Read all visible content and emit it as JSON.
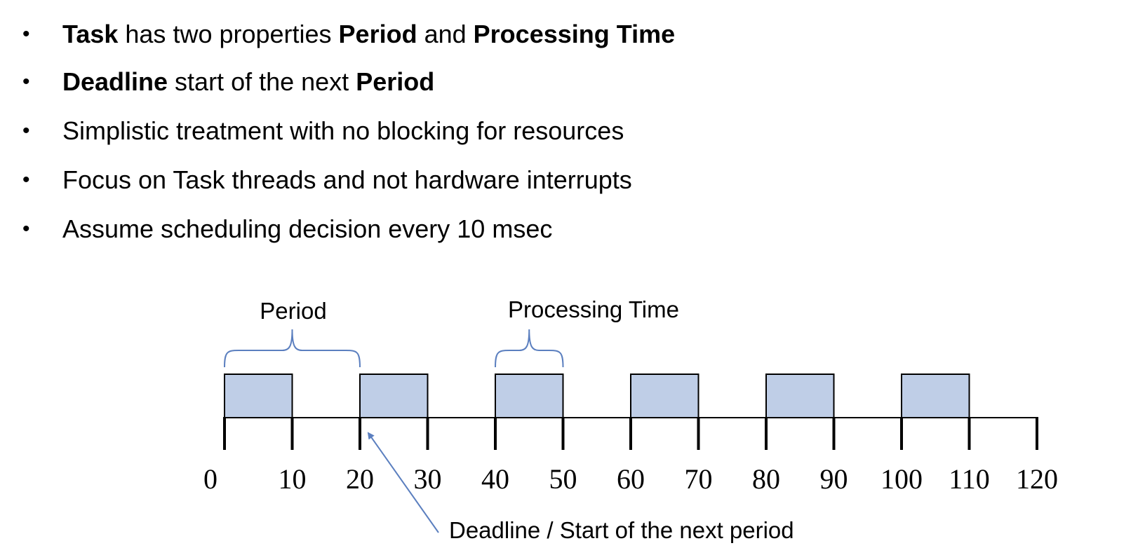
{
  "bullets": [
    {
      "segments": [
        {
          "text": "Task",
          "bold": true
        },
        {
          "text": " has two properties ",
          "bold": false
        },
        {
          "text": "Period",
          "bold": true
        },
        {
          "text": " and ",
          "bold": false
        },
        {
          "text": "Processing Time",
          "bold": true
        }
      ]
    },
    {
      "segments": [
        {
          "text": "Deadline",
          "bold": true
        },
        {
          "text": " start of the next ",
          "bold": false
        },
        {
          "text": "Period",
          "bold": true
        }
      ]
    },
    {
      "segments": [
        {
          "text": "Simplistic treatment with no blocking for resources",
          "bold": false
        }
      ]
    },
    {
      "segments": [
        {
          "text": "Focus on Task threads and not hardware interrupts",
          "bold": false
        }
      ]
    },
    {
      "segments": [
        {
          "text": "Assume scheduling decision every 10 msec",
          "bold": false
        }
      ]
    }
  ],
  "bullet_symbol": "•",
  "diagram": {
    "period_label": "Period",
    "processing_time_label": "Processing Time",
    "deadline_label": "Deadline / Start of the next period",
    "ticks": [
      0,
      10,
      20,
      30,
      40,
      50,
      60,
      70,
      80,
      90,
      100,
      110,
      120
    ],
    "period": 20,
    "processing_time": 10,
    "task_starts": [
      0,
      20,
      40,
      60,
      80,
      100
    ],
    "period_brace_range": [
      0,
      20
    ],
    "processing_brace_range": [
      40,
      50
    ],
    "deadline_pointer_at": 20,
    "colors": {
      "task_fill": "#bfcee7",
      "task_stroke": "#000000",
      "brace": "#5b7fbf",
      "arrow": "#5b7fbf",
      "axis": "#000000"
    }
  }
}
